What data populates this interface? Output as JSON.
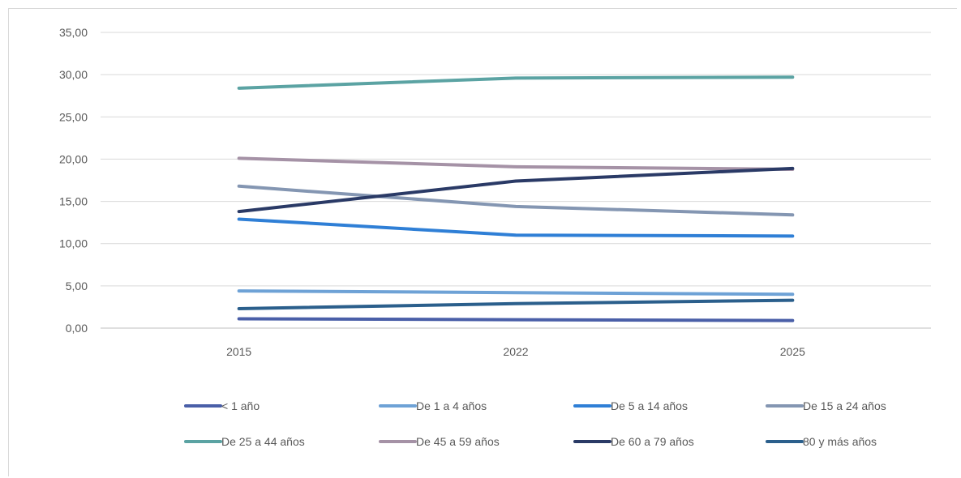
{
  "chart_data": {
    "type": "line",
    "title": "",
    "xlabel": "",
    "ylabel": "",
    "x": [
      "2015",
      "2022",
      "2025"
    ],
    "ylim": [
      0,
      35
    ],
    "yticks": [
      "0,00",
      "5,00",
      "10,00",
      "15,00",
      "20,00",
      "25,00",
      "30,00",
      "35,00"
    ],
    "grid": true,
    "legend_position": "bottom",
    "series": [
      {
        "name": "< 1 año",
        "values": [
          1.1,
          1.0,
          0.9
        ],
        "color": "#4a5fa8"
      },
      {
        "name": "De 1 a 4 años",
        "values": [
          4.4,
          4.2,
          4.0
        ],
        "color": "#6ea2d6"
      },
      {
        "name": "De 5 a 14 años",
        "values": [
          12.9,
          11.0,
          10.9
        ],
        "color": "#2f7fd6"
      },
      {
        "name": "De 15 a 24 años",
        "values": [
          16.8,
          14.4,
          13.4
        ],
        "color": "#8496b2"
      },
      {
        "name": "De 25 a 44 años",
        "values": [
          28.4,
          29.6,
          29.7
        ],
        "color": "#5ba3a3"
      },
      {
        "name": "De 45 a 59 años",
        "values": [
          20.1,
          19.1,
          18.8
        ],
        "color": "#a592a6"
      },
      {
        "name": "De 60 a 79 años",
        "values": [
          13.8,
          17.4,
          18.9
        ],
        "color": "#2a3a66"
      },
      {
        "name": "80 y más años",
        "values": [
          2.3,
          2.9,
          3.3
        ],
        "color": "#2b5f8c"
      }
    ]
  }
}
